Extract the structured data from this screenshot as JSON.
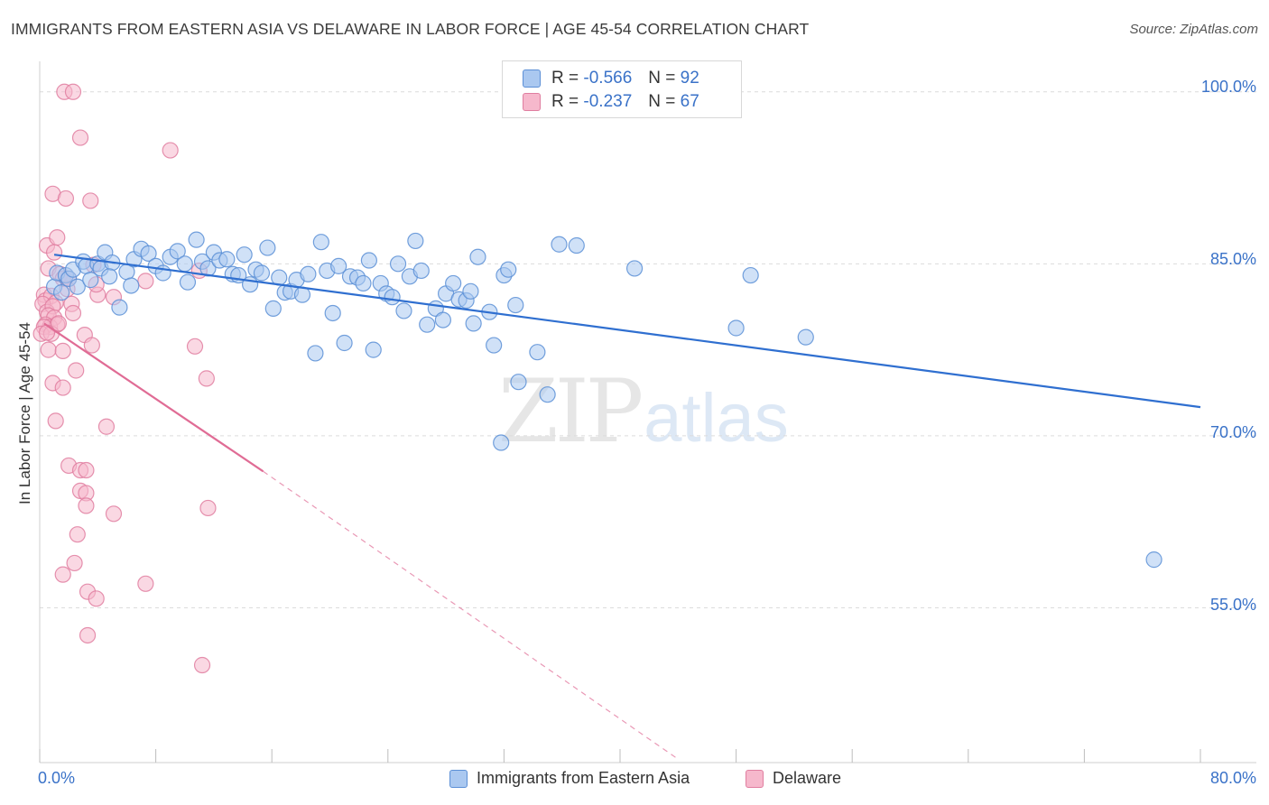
{
  "title": "IMMIGRANTS FROM EASTERN ASIA VS DELAWARE IN LABOR FORCE | AGE 45-54 CORRELATION CHART",
  "source": "Source: ZipAtlas.com",
  "watermark": {
    "zip": "ZIP",
    "atlas": "atlas"
  },
  "legend": {
    "r_label": "R =",
    "n_label": "N =",
    "rows": [
      {
        "name": "Immigrants from Eastern Asia",
        "r": "-0.566",
        "n": "92"
      },
      {
        "name": "Delaware",
        "r": "-0.237",
        "n": "67"
      }
    ]
  },
  "colors": {
    "blue_fill": "#aac8f0",
    "blue_stroke": "#5b8fd6",
    "blue_line": "#2f6fd0",
    "pink_fill": "#f6b8cc",
    "pink_stroke": "#e07ea0",
    "pink_line": "#e06c95",
    "tick_text": "#3a72c8",
    "grid": "#dcdcdc"
  },
  "chart_data": {
    "type": "scatter",
    "title": "IMMIGRANTS FROM EASTERN ASIA VS DELAWARE IN LABOR FORCE | AGE 45-54 CORRELATION CHART",
    "xlabel": "",
    "ylabel": "In Labor Force | Age 45-54",
    "xlim": [
      0,
      80
    ],
    "ylim": [
      41.5,
      102.5
    ],
    "x_tick_labels": [
      "0.0%",
      "80.0%"
    ],
    "y_ticks": [
      100,
      85,
      70,
      55
    ],
    "y_tick_labels": [
      "100.0%",
      "85.0%",
      "70.0%",
      "55.0%"
    ],
    "grid": true,
    "legend_position": "top-center",
    "series": [
      {
        "name": "Immigrants from Eastern Asia",
        "r": -0.566,
        "n": 92,
        "trend": {
          "x0": 1.0,
          "y0": 85.8,
          "x1": 80.0,
          "y1": 72.5
        },
        "points": [
          [
            1.0,
            83.0
          ],
          [
            1.2,
            84.2
          ],
          [
            1.5,
            82.5
          ],
          [
            1.8,
            84.0
          ],
          [
            2.0,
            83.7
          ],
          [
            2.3,
            84.5
          ],
          [
            2.6,
            83.0
          ],
          [
            3.0,
            85.2
          ],
          [
            3.2,
            84.8
          ],
          [
            3.5,
            83.6
          ],
          [
            4.0,
            85.0
          ],
          [
            4.2,
            84.6
          ],
          [
            4.5,
            86.0
          ],
          [
            5.0,
            85.1
          ],
          [
            5.5,
            81.2
          ],
          [
            6.0,
            84.3
          ],
          [
            6.5,
            85.4
          ],
          [
            7.0,
            86.3
          ],
          [
            7.5,
            85.9
          ],
          [
            8.0,
            84.8
          ],
          [
            8.5,
            84.2
          ],
          [
            9.0,
            85.6
          ],
          [
            9.5,
            86.1
          ],
          [
            10.0,
            85.0
          ],
          [
            10.2,
            83.4
          ],
          [
            10.8,
            87.1
          ],
          [
            11.2,
            85.2
          ],
          [
            11.6,
            84.6
          ],
          [
            12.0,
            86.0
          ],
          [
            12.4,
            85.3
          ],
          [
            12.9,
            85.4
          ],
          [
            13.3,
            84.1
          ],
          [
            13.7,
            84.0
          ],
          [
            14.1,
            85.8
          ],
          [
            14.5,
            83.2
          ],
          [
            14.9,
            84.5
          ],
          [
            15.3,
            84.2
          ],
          [
            15.7,
            86.4
          ],
          [
            16.1,
            81.1
          ],
          [
            16.5,
            83.8
          ],
          [
            16.9,
            82.5
          ],
          [
            17.3,
            82.6
          ],
          [
            17.7,
            83.6
          ],
          [
            18.1,
            82.3
          ],
          [
            18.5,
            84.1
          ],
          [
            19.0,
            77.2
          ],
          [
            19.4,
            86.9
          ],
          [
            19.8,
            84.4
          ],
          [
            20.2,
            80.7
          ],
          [
            20.6,
            84.8
          ],
          [
            21.0,
            78.1
          ],
          [
            21.4,
            83.9
          ],
          [
            21.9,
            83.8
          ],
          [
            22.3,
            83.3
          ],
          [
            22.7,
            85.3
          ],
          [
            23.0,
            77.5
          ],
          [
            23.5,
            83.3
          ],
          [
            23.9,
            82.4
          ],
          [
            24.3,
            82.1
          ],
          [
            24.7,
            85.0
          ],
          [
            25.1,
            80.9
          ],
          [
            25.5,
            83.9
          ],
          [
            25.9,
            87.0
          ],
          [
            26.3,
            84.4
          ],
          [
            26.7,
            79.7
          ],
          [
            27.3,
            81.1
          ],
          [
            27.8,
            80.1
          ],
          [
            28.0,
            82.4
          ],
          [
            28.5,
            83.3
          ],
          [
            28.9,
            81.9
          ],
          [
            29.4,
            81.8
          ],
          [
            29.7,
            82.6
          ],
          [
            29.9,
            79.8
          ],
          [
            30.2,
            85.6
          ],
          [
            31.0,
            80.8
          ],
          [
            31.3,
            77.9
          ],
          [
            31.8,
            69.4
          ],
          [
            32.0,
            84.0
          ],
          [
            32.3,
            84.5
          ],
          [
            32.8,
            81.4
          ],
          [
            33.0,
            74.7
          ],
          [
            34.3,
            77.3
          ],
          [
            35.0,
            73.6
          ],
          [
            35.8,
            86.7
          ],
          [
            37.0,
            86.6
          ],
          [
            41.0,
            84.6
          ],
          [
            48.0,
            79.4
          ],
          [
            49.0,
            84.0
          ],
          [
            52.8,
            78.6
          ],
          [
            76.8,
            59.2
          ],
          [
            4.8,
            83.9
          ],
          [
            6.3,
            83.1
          ]
        ]
      },
      {
        "name": "Delaware",
        "r": -0.237,
        "n": 67,
        "trend": {
          "x0": 0.3,
          "y0": 79.8,
          "x1": 15.4,
          "y1": 66.9
        },
        "trend_dashed": {
          "x0": 15.4,
          "y0": 66.9,
          "x1": 44.0,
          "y1": 41.8
        },
        "points": [
          [
            1.7,
            100.0
          ],
          [
            2.3,
            100.0
          ],
          [
            2.8,
            96.0
          ],
          [
            9.0,
            94.9
          ],
          [
            0.9,
            91.1
          ],
          [
            1.8,
            90.7
          ],
          [
            3.5,
            90.5
          ],
          [
            0.5,
            86.6
          ],
          [
            1.2,
            87.3
          ],
          [
            1.0,
            86.0
          ],
          [
            0.6,
            84.6
          ],
          [
            1.4,
            84.1
          ],
          [
            1.6,
            83.7
          ],
          [
            2.0,
            83.7
          ],
          [
            3.7,
            84.9
          ],
          [
            1.9,
            82.8
          ],
          [
            0.3,
            82.3
          ],
          [
            0.4,
            81.8
          ],
          [
            0.8,
            82.2
          ],
          [
            1.1,
            81.6
          ],
          [
            0.2,
            81.5
          ],
          [
            0.5,
            80.8
          ],
          [
            0.9,
            81.3
          ],
          [
            0.6,
            80.5
          ],
          [
            1.0,
            80.3
          ],
          [
            0.4,
            79.7
          ],
          [
            0.7,
            79.5
          ],
          [
            1.2,
            79.7
          ],
          [
            0.3,
            79.5
          ],
          [
            0.1,
            78.9
          ],
          [
            0.8,
            78.9
          ],
          [
            1.3,
            79.8
          ],
          [
            0.5,
            79.0
          ],
          [
            2.2,
            81.5
          ],
          [
            2.3,
            80.7
          ],
          [
            4.0,
            82.3
          ],
          [
            5.1,
            82.1
          ],
          [
            7.3,
            83.5
          ],
          [
            3.9,
            83.2
          ],
          [
            3.1,
            78.8
          ],
          [
            3.6,
            77.9
          ],
          [
            0.6,
            77.5
          ],
          [
            1.6,
            77.4
          ],
          [
            2.5,
            75.7
          ],
          [
            0.9,
            74.6
          ],
          [
            1.6,
            74.2
          ],
          [
            10.7,
            77.8
          ],
          [
            11.5,
            75.0
          ],
          [
            4.6,
            70.8
          ],
          [
            1.1,
            71.3
          ],
          [
            2.0,
            67.4
          ],
          [
            2.8,
            67.0
          ],
          [
            3.2,
            67.0
          ],
          [
            2.8,
            65.2
          ],
          [
            3.2,
            65.0
          ],
          [
            3.2,
            63.9
          ],
          [
            5.1,
            63.2
          ],
          [
            11.6,
            63.7
          ],
          [
            2.6,
            61.4
          ],
          [
            2.4,
            58.9
          ],
          [
            1.6,
            57.9
          ],
          [
            7.3,
            57.1
          ],
          [
            3.3,
            56.4
          ],
          [
            3.9,
            55.8
          ],
          [
            3.3,
            52.6
          ],
          [
            11.2,
            50.0
          ],
          [
            11.0,
            84.4
          ]
        ]
      }
    ]
  }
}
